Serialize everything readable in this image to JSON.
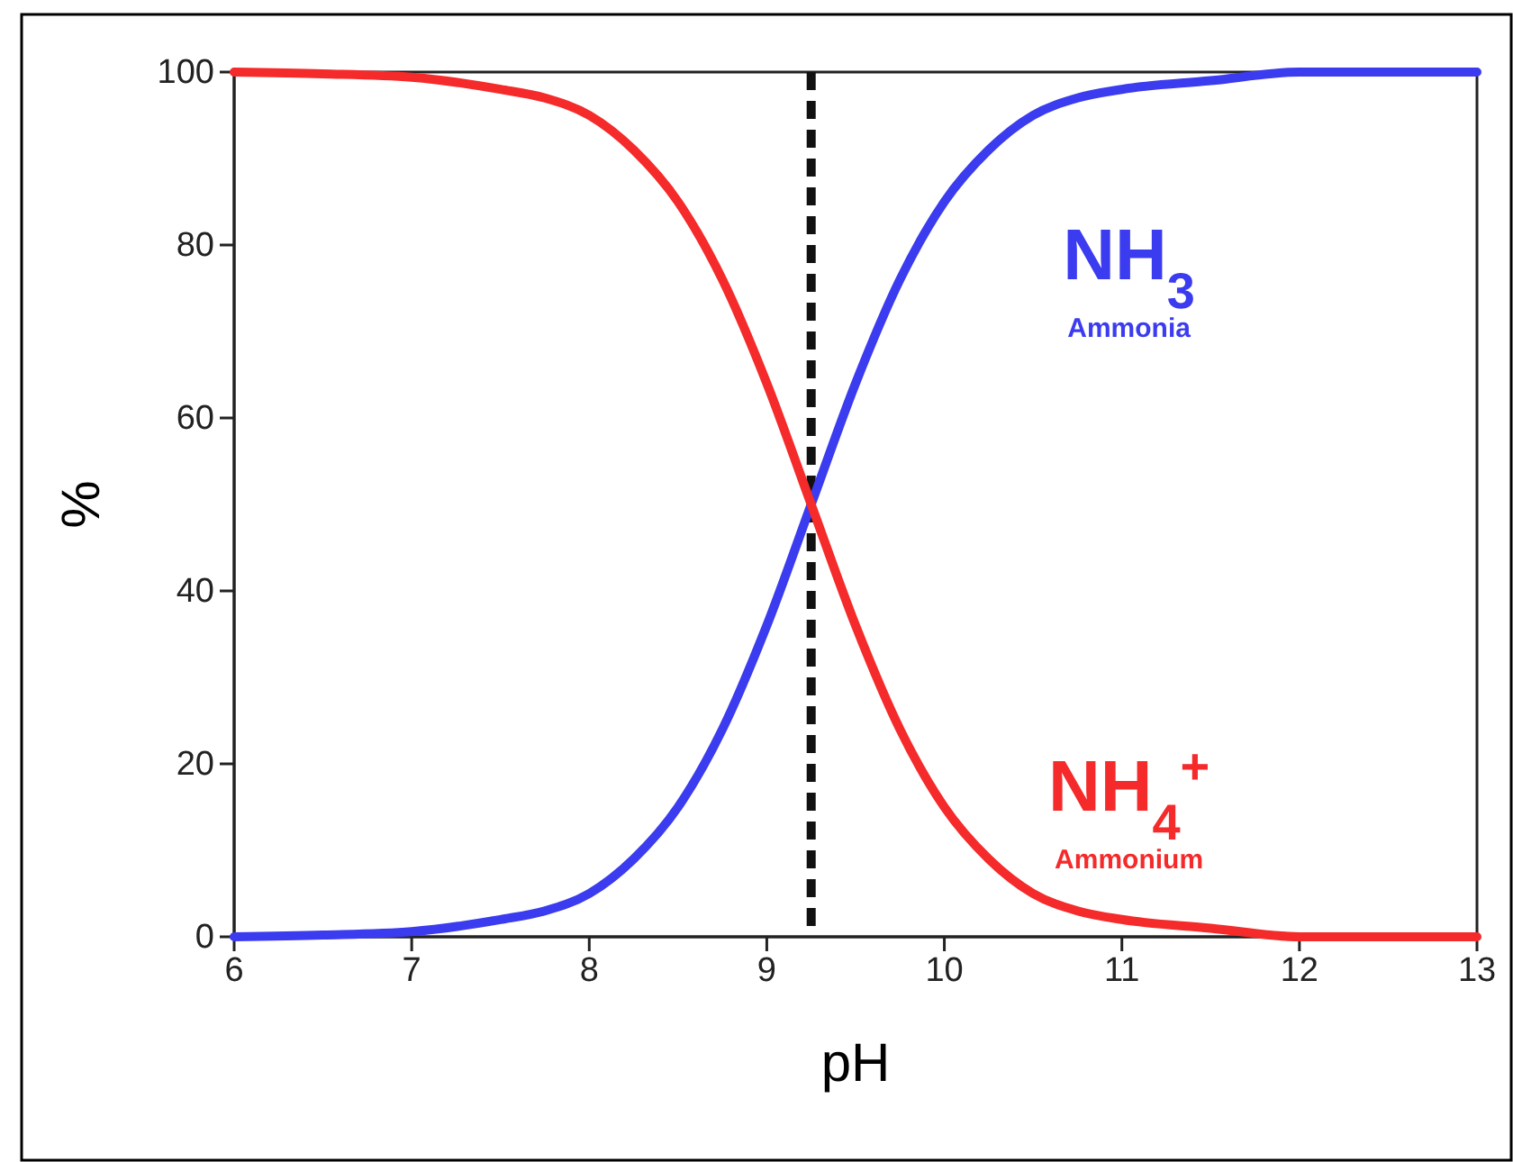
{
  "chart_data": {
    "type": "line",
    "xlabel": "pH",
    "ylabel": "%",
    "x": [
      6,
      6.5,
      7,
      7.5,
      7.75,
      8,
      8.25,
      8.5,
      8.75,
      9,
      9.25,
      9.5,
      9.75,
      10,
      10.25,
      10.5,
      10.75,
      11,
      11.5,
      12,
      12.5,
      13
    ],
    "series": [
      {
        "name": "NH$_{3}$",
        "color": "#3b3bf0",
        "values": [
          0,
          0.2,
          0.6,
          2,
          3,
          5,
          9,
          15,
          24,
          36,
          50,
          64,
          76,
          85,
          91,
          95,
          97,
          98,
          99,
          100,
          100,
          100
        ]
      },
      {
        "name": "NH$_{4}$$^{+}$",
        "color": "#f52a2a",
        "values": [
          100,
          99.8,
          99.4,
          98,
          97,
          95,
          91,
          85,
          76,
          64,
          50,
          36,
          24,
          15,
          9,
          5,
          3,
          2,
          1,
          0,
          0,
          0
        ]
      }
    ],
    "annotations": [
      "Ammonia",
      "Ammonium"
    ],
    "xlim": [
      6,
      13
    ],
    "xticks": [
      6,
      7,
      8,
      9,
      10,
      11,
      12,
      13
    ],
    "ylim": [
      0,
      100
    ],
    "yticks": [
      0,
      20,
      40,
      60,
      80,
      100
    ],
    "ref_lines": [
      {
        "axis": "x",
        "value": 9.25,
        "color": "#111111",
        "line_style": "dashed"
      }
    ],
    "grid": false,
    "marker": "none",
    "line_style": "solid"
  }
}
